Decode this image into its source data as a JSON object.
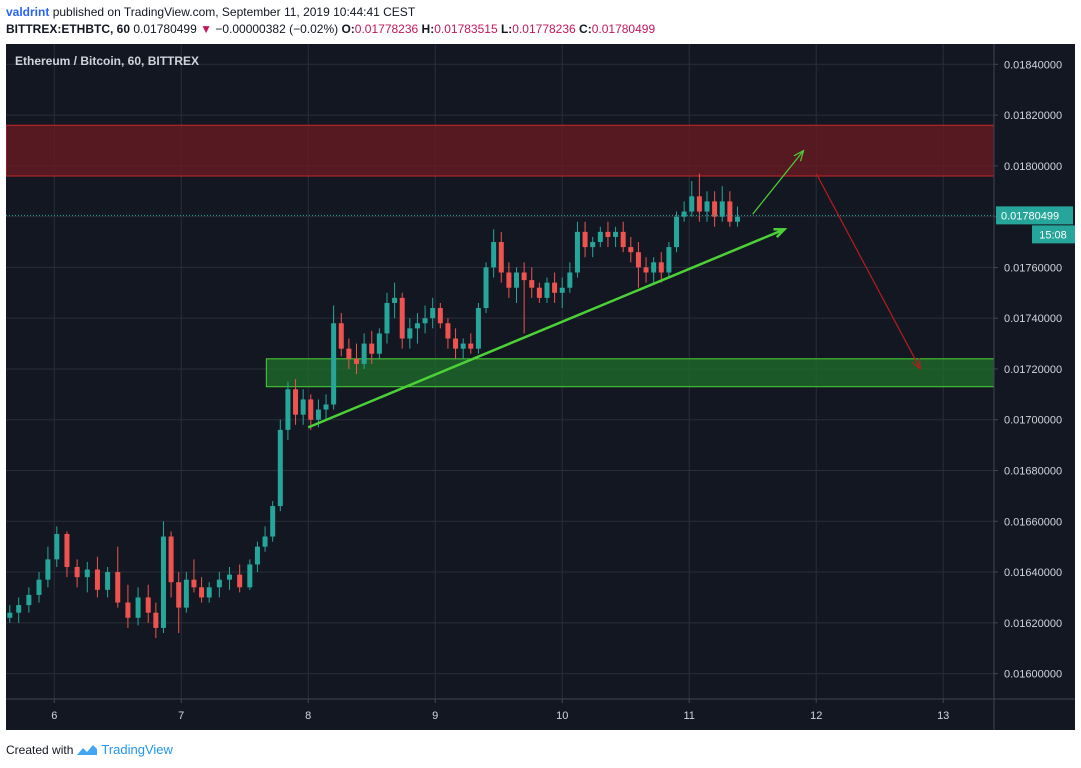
{
  "header": {
    "author": "valdrint",
    "published_text": "published on TradingView.com, September 11, 2019 10:44:41 CEST",
    "symbol": "BITTREX:ETHBTC, 60",
    "last": "0.01780499",
    "change_arrow": "▼",
    "change": "−0.00000382 (−0.02%)",
    "o_label": "O:",
    "o_value": "0.01778236",
    "h_label": "H:",
    "h_value": "0.01783515",
    "l_label": "L:",
    "l_value": "0.01778236",
    "c_label": "C:",
    "c_value": "0.01780499"
  },
  "footer": {
    "created_with": "Created with",
    "brand": "TradingView",
    "logo_icon": "tradingview-logo-icon"
  },
  "colors": {
    "background": "#131722",
    "up": "#26a69a",
    "down": "#ef5350",
    "resistance_zone": "#6d1a22",
    "support_zone": "#1e6b2a",
    "trend": "#4cd137",
    "projection_up": "#4cd137",
    "projection_down": "#b71c1c",
    "price_label": "#26a69a"
  },
  "chart_data": {
    "type": "candlestick",
    "title": "Ethereum / Bitcoin, 60, BITTREX",
    "x_ticks": [
      "6",
      "7",
      "8",
      "9",
      "10",
      "11",
      "12",
      "13"
    ],
    "y_ticks": [
      "0.01840000",
      "0.01820000",
      "0.01800000",
      "0.01780000",
      "0.01760000",
      "0.01740000",
      "0.01720000",
      "0.01700000",
      "0.01680000",
      "0.01660000",
      "0.01640000",
      "0.01620000",
      "0.01600000"
    ],
    "ylim": [
      0.0159,
      0.01848
    ],
    "xlim": [
      5.62,
      13.4
    ],
    "grid": true,
    "last_price": 0.01780499,
    "last_price_label": "0.01780499",
    "countdown_label": "15:08",
    "candles": [
      [
        5.65,
        0.01622,
        0.01627,
        0.0162,
        0.01624
      ],
      [
        5.72,
        0.01624,
        0.0163,
        0.0162,
        0.01627
      ],
      [
        5.8,
        0.01627,
        0.01634,
        0.01624,
        0.01631
      ],
      [
        5.88,
        0.01631,
        0.0164,
        0.01628,
        0.01637
      ],
      [
        5.95,
        0.01637,
        0.0165,
        0.01634,
        0.01645
      ],
      [
        6.02,
        0.01645,
        0.01658,
        0.01642,
        0.01655
      ],
      [
        6.1,
        0.01655,
        0.01656,
        0.01638,
        0.01642
      ],
      [
        6.18,
        0.01642,
        0.01645,
        0.01634,
        0.01638
      ],
      [
        6.26,
        0.01638,
        0.01644,
        0.01632,
        0.01641
      ],
      [
        6.34,
        0.01641,
        0.01646,
        0.0163,
        0.01633
      ],
      [
        6.42,
        0.01633,
        0.01642,
        0.0163,
        0.0164
      ],
      [
        6.5,
        0.0164,
        0.0165,
        0.01626,
        0.01628
      ],
      [
        6.58,
        0.01628,
        0.01635,
        0.01618,
        0.01622
      ],
      [
        6.66,
        0.01622,
        0.01634,
        0.01619,
        0.0163
      ],
      [
        6.74,
        0.0163,
        0.01635,
        0.0162,
        0.01624
      ],
      [
        6.8,
        0.01624,
        0.01628,
        0.01614,
        0.01618
      ],
      [
        6.86,
        0.01618,
        0.0166,
        0.01616,
        0.01654
      ],
      [
        6.92,
        0.01654,
        0.01656,
        0.0163,
        0.01636
      ],
      [
        6.98,
        0.01636,
        0.0164,
        0.01616,
        0.01626
      ],
      [
        7.04,
        0.01626,
        0.0164,
        0.01624,
        0.01637
      ],
      [
        7.1,
        0.01637,
        0.01645,
        0.01632,
        0.01634
      ],
      [
        7.16,
        0.01634,
        0.01638,
        0.01628,
        0.0163
      ],
      [
        7.22,
        0.0163,
        0.01636,
        0.01628,
        0.01634
      ],
      [
        7.3,
        0.01634,
        0.0164,
        0.0163,
        0.01637
      ],
      [
        7.38,
        0.01637,
        0.01642,
        0.01633,
        0.01639
      ],
      [
        7.46,
        0.01639,
        0.01643,
        0.01632,
        0.01634
      ],
      [
        7.54,
        0.01634,
        0.01645,
        0.01633,
        0.01643
      ],
      [
        7.6,
        0.01643,
        0.01652,
        0.0164,
        0.0165
      ],
      [
        7.66,
        0.0165,
        0.01658,
        0.01648,
        0.01654
      ],
      [
        7.72,
        0.01654,
        0.01668,
        0.01652,
        0.01666
      ],
      [
        7.78,
        0.01666,
        0.017,
        0.01664,
        0.01696
      ],
      [
        7.84,
        0.01696,
        0.01715,
        0.01692,
        0.01712
      ],
      [
        7.9,
        0.01712,
        0.01716,
        0.01698,
        0.01702
      ],
      [
        7.96,
        0.01702,
        0.01712,
        0.01698,
        0.01708
      ],
      [
        8.02,
        0.01708,
        0.0171,
        0.01696,
        0.017
      ],
      [
        8.08,
        0.017,
        0.01708,
        0.01697,
        0.01704
      ],
      [
        8.14,
        0.01704,
        0.0171,
        0.017,
        0.01706
      ],
      [
        8.2,
        0.01706,
        0.01745,
        0.01704,
        0.01738
      ],
      [
        8.26,
        0.01738,
        0.01742,
        0.01725,
        0.01728
      ],
      [
        8.32,
        0.01728,
        0.01732,
        0.0172,
        0.01724
      ],
      [
        8.38,
        0.01724,
        0.0173,
        0.01718,
        0.01722
      ],
      [
        8.44,
        0.01722,
        0.01734,
        0.0172,
        0.0173
      ],
      [
        8.5,
        0.0173,
        0.01735,
        0.01722,
        0.01726
      ],
      [
        8.56,
        0.01726,
        0.01736,
        0.01724,
        0.01734
      ],
      [
        8.62,
        0.01734,
        0.0175,
        0.0173,
        0.01746
      ],
      [
        8.68,
        0.01746,
        0.01754,
        0.0174,
        0.01748
      ],
      [
        8.74,
        0.01748,
        0.0175,
        0.01728,
        0.01732
      ],
      [
        8.8,
        0.01732,
        0.0174,
        0.01728,
        0.01736
      ],
      [
        8.86,
        0.01736,
        0.01742,
        0.0173,
        0.01738
      ],
      [
        8.92,
        0.01738,
        0.01745,
        0.01734,
        0.0174
      ],
      [
        8.98,
        0.0174,
        0.01748,
        0.01736,
        0.01744
      ],
      [
        9.04,
        0.01744,
        0.01746,
        0.01736,
        0.01738
      ],
      [
        9.1,
        0.01738,
        0.0174,
        0.01728,
        0.01732
      ],
      [
        9.16,
        0.01732,
        0.01736,
        0.01724,
        0.01728
      ],
      [
        9.22,
        0.01728,
        0.01732,
        0.01724,
        0.0173
      ],
      [
        9.28,
        0.0173,
        0.01734,
        0.01726,
        0.01728
      ],
      [
        9.34,
        0.01728,
        0.01746,
        0.01726,
        0.01744
      ],
      [
        9.4,
        0.01744,
        0.01762,
        0.01742,
        0.0176
      ],
      [
        9.46,
        0.0176,
        0.01775,
        0.01756,
        0.0177
      ],
      [
        9.52,
        0.0177,
        0.01774,
        0.01754,
        0.01758
      ],
      [
        9.58,
        0.01758,
        0.01762,
        0.01748,
        0.01752
      ],
      [
        9.64,
        0.01752,
        0.0176,
        0.01746,
        0.01758
      ],
      [
        9.7,
        0.01758,
        0.01762,
        0.01734,
        0.01755
      ],
      [
        9.76,
        0.01755,
        0.0176,
        0.01748,
        0.01752
      ],
      [
        9.82,
        0.01752,
        0.01754,
        0.01746,
        0.01748
      ],
      [
        9.88,
        0.01748,
        0.01756,
        0.01746,
        0.01754
      ],
      [
        9.94,
        0.01754,
        0.01758,
        0.01746,
        0.0175
      ],
      [
        10.0,
        0.0175,
        0.01756,
        0.01744,
        0.01752
      ],
      [
        10.06,
        0.01752,
        0.01762,
        0.0175,
        0.01758
      ],
      [
        10.12,
        0.01758,
        0.01778,
        0.01756,
        0.01774
      ],
      [
        10.18,
        0.01774,
        0.01778,
        0.01764,
        0.01768
      ],
      [
        10.24,
        0.01768,
        0.01772,
        0.01764,
        0.0177
      ],
      [
        10.3,
        0.0177,
        0.01776,
        0.01768,
        0.01774
      ],
      [
        10.36,
        0.01774,
        0.01778,
        0.01768,
        0.01772
      ],
      [
        10.42,
        0.01772,
        0.01776,
        0.01768,
        0.01774
      ],
      [
        10.48,
        0.01774,
        0.01778,
        0.01766,
        0.01768
      ],
      [
        10.54,
        0.01768,
        0.01772,
        0.01762,
        0.01766
      ],
      [
        10.6,
        0.01766,
        0.0177,
        0.01752,
        0.0176
      ],
      [
        10.66,
        0.0176,
        0.01764,
        0.01754,
        0.01758
      ],
      [
        10.72,
        0.01758,
        0.01764,
        0.01754,
        0.01762
      ],
      [
        10.78,
        0.01762,
        0.01766,
        0.01754,
        0.01758
      ],
      [
        10.84,
        0.01758,
        0.0177,
        0.01756,
        0.01768
      ],
      [
        10.9,
        0.01768,
        0.01782,
        0.01766,
        0.0178
      ],
      [
        10.96,
        0.0178,
        0.01786,
        0.01778,
        0.01782
      ],
      [
        11.02,
        0.01782,
        0.01794,
        0.0178,
        0.01788
      ],
      [
        11.08,
        0.01788,
        0.01797,
        0.01778,
        0.01782
      ],
      [
        11.14,
        0.01782,
        0.0179,
        0.01778,
        0.01786
      ],
      [
        11.2,
        0.01786,
        0.0179,
        0.01776,
        0.0178
      ],
      [
        11.26,
        0.0178,
        0.01792,
        0.01778,
        0.01786
      ],
      [
        11.32,
        0.01786,
        0.0179,
        0.01776,
        0.01778
      ],
      [
        11.38,
        0.01778,
        0.01784,
        0.01776,
        0.0178
      ]
    ],
    "support_zone": {
      "x_from": 7.67,
      "y_from": 0.01713,
      "y_to": 0.01724
    },
    "resistance_zone": {
      "x_from": 5.62,
      "y_from": 0.01796,
      "y_to": 0.01816
    },
    "trendline": [
      [
        8.0,
        0.01697
      ],
      [
        11.75,
        0.01775
      ]
    ],
    "projection_up": [
      [
        11.5,
        0.01781
      ],
      [
        11.9,
        0.01806
      ]
    ],
    "projection_down": [
      [
        12.0,
        0.01797
      ],
      [
        12.82,
        0.0172
      ]
    ]
  }
}
